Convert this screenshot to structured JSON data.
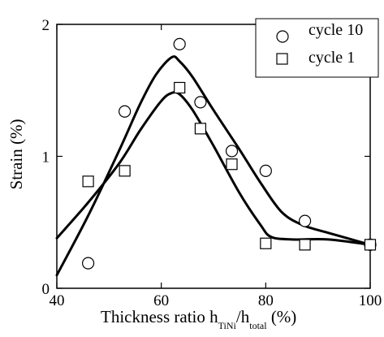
{
  "chart_data": {
    "type": "scatter",
    "xlim": [
      40,
      100
    ],
    "ylim": [
      0,
      2
    ],
    "x_ticks": [
      "40",
      "60",
      "80",
      "100"
    ],
    "y_ticks": [
      "0",
      "1",
      "2"
    ],
    "ylabel": "Strain (%)",
    "xlabel": {
      "prefix": "Thickness ratio h",
      "sub1": "TiNi",
      "middle": "/h",
      "sub2": "total",
      "suffix": " (%)"
    },
    "legend_position": "top-right",
    "series": [
      {
        "name": "cycle 10",
        "marker": "circle",
        "points": [
          [
            46,
            0.19
          ],
          [
            53,
            1.34
          ],
          [
            63.5,
            1.85
          ],
          [
            67.5,
            1.41
          ],
          [
            73.5,
            1.04
          ],
          [
            80,
            0.89
          ],
          [
            87.5,
            0.51
          ],
          [
            100,
            0.33
          ]
        ],
        "curve": [
          [
            40,
            0.1
          ],
          [
            46,
            0.55
          ],
          [
            52,
            1.05
          ],
          [
            56,
            1.4
          ],
          [
            59,
            1.62
          ],
          [
            62,
            1.75
          ],
          [
            63.5,
            1.72
          ],
          [
            66,
            1.6
          ],
          [
            70,
            1.35
          ],
          [
            75,
            1.05
          ],
          [
            79,
            0.8
          ],
          [
            83,
            0.58
          ],
          [
            87,
            0.48
          ],
          [
            92,
            0.42
          ],
          [
            100,
            0.33
          ]
        ]
      },
      {
        "name": "cycle 1",
        "marker": "square",
        "points": [
          [
            46,
            0.81
          ],
          [
            53,
            0.89
          ],
          [
            63.5,
            1.52
          ],
          [
            67.5,
            1.21
          ],
          [
            73.5,
            0.94
          ],
          [
            80,
            0.34
          ],
          [
            87.5,
            0.33
          ],
          [
            100,
            0.33
          ]
        ],
        "curve": [
          [
            40,
            0.38
          ],
          [
            46,
            0.65
          ],
          [
            52,
            0.95
          ],
          [
            56,
            1.2
          ],
          [
            60,
            1.42
          ],
          [
            62,
            1.48
          ],
          [
            63.5,
            1.47
          ],
          [
            66,
            1.35
          ],
          [
            70,
            1.08
          ],
          [
            75,
            0.72
          ],
          [
            79,
            0.48
          ],
          [
            81,
            0.39
          ],
          [
            85,
            0.37
          ],
          [
            92,
            0.37
          ],
          [
            100,
            0.33
          ]
        ]
      }
    ]
  }
}
